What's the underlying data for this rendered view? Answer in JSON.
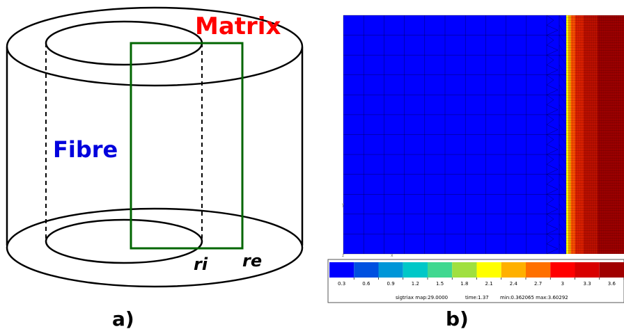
{
  "panel_a": {
    "label_matrix": "Matrix",
    "label_fibre": "Fibre",
    "label_ri": "ri",
    "label_re": "re",
    "caption": "a)",
    "colors": {
      "matrix_text": "#ff0000",
      "fibre_text": "#0000dd",
      "section_outline": "#006600",
      "cylinder_outline": "#000000"
    }
  },
  "panel_b": {
    "caption": "b)",
    "colorbar": {
      "ticks": [
        "0.3",
        "0.6",
        "0.9",
        "1.2",
        "1.5",
        "1.8",
        "2.1",
        "2.4",
        "2.7",
        "3",
        "3.3",
        "3.6"
      ],
      "colors": [
        "#0000ff",
        "#0050e0",
        "#0096d8",
        "#00c8c8",
        "#40d890",
        "#a0e040",
        "#ffff00",
        "#ffb000",
        "#ff7000",
        "#ff0000",
        "#d80000",
        "#a00000"
      ],
      "info": {
        "map": "sigtriax map:29.0000",
        "time": "time:1.37",
        "range": "min:0.362065 max:3.60292"
      }
    },
    "mesh": {
      "fibre_color": "#0000ff",
      "matrix_colors": [
        "#ffff00",
        "#ffa000",
        "#ff5000",
        "#e02000",
        "#c01000",
        "#a00000"
      ]
    }
  }
}
